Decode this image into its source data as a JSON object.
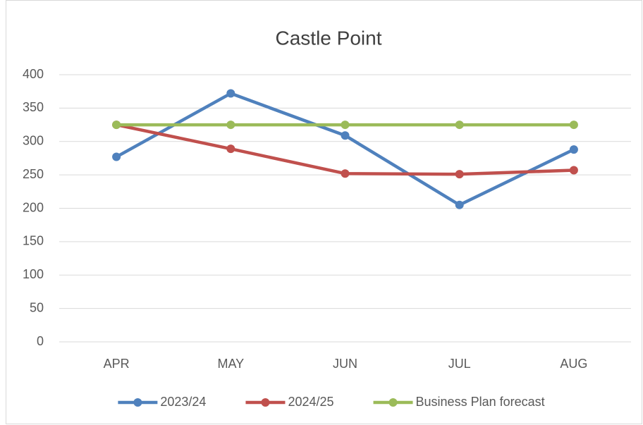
{
  "chart_data": {
    "type": "line",
    "title": "Castle Point",
    "categories": [
      "APR",
      "MAY",
      "JUN",
      "JUL",
      "AUG"
    ],
    "series": [
      {
        "name": "2023/24",
        "color": "#4f81bd",
        "values": [
          277,
          372,
          309,
          205,
          288
        ]
      },
      {
        "name": "2024/25",
        "color": "#c0504d",
        "values": [
          325,
          289,
          252,
          251,
          257
        ]
      },
      {
        "name": "Business Plan forecast",
        "color": "#9bbb59",
        "values": [
          325,
          325,
          325,
          325,
          325
        ]
      }
    ],
    "ylim": [
      0,
      400
    ],
    "yticks": [
      0,
      50,
      100,
      150,
      200,
      250,
      300,
      350,
      400
    ],
    "grid": true,
    "legend": "bottom"
  }
}
